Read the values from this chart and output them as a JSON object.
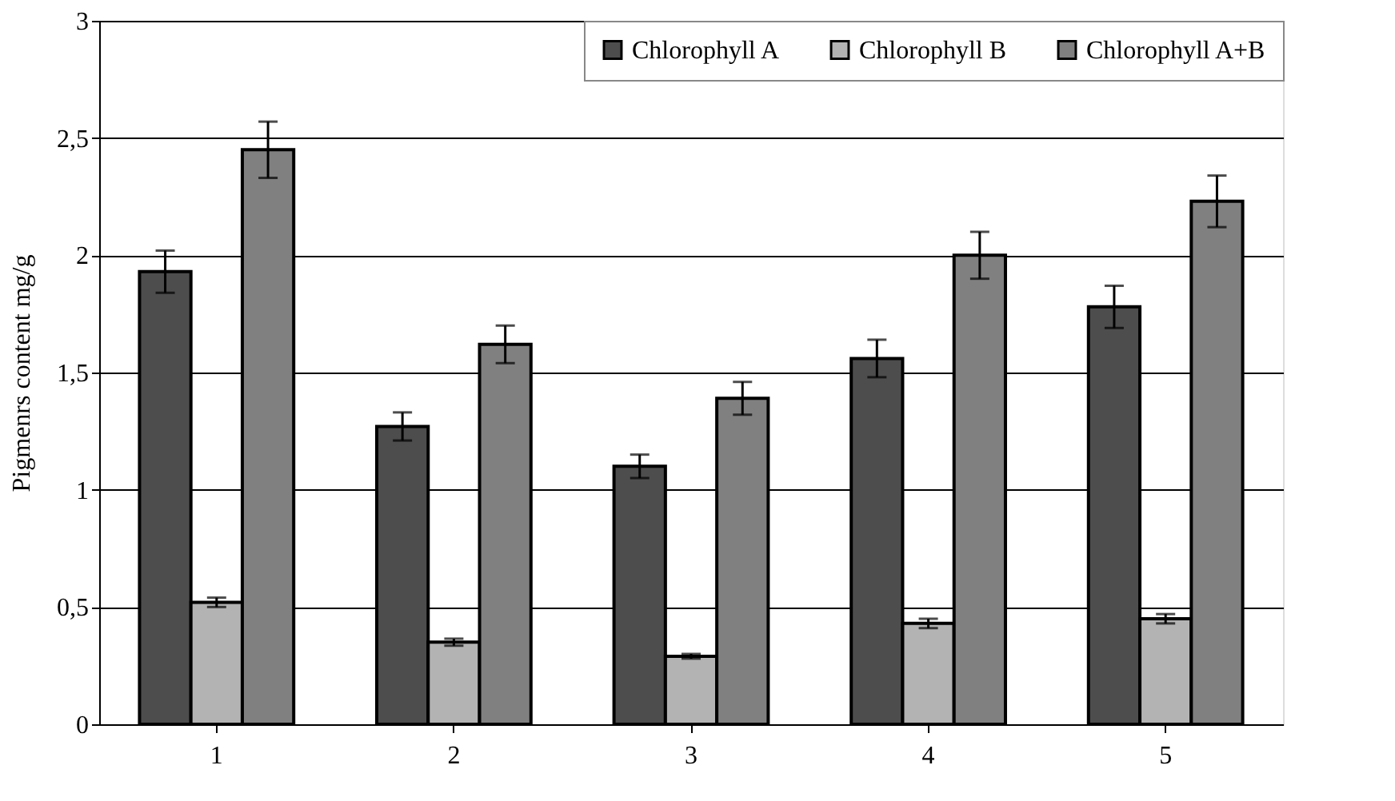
{
  "chart_data": {
    "type": "bar",
    "ylabel": "Pigmenrs content mg/g",
    "categories": [
      "1",
      "2",
      "3",
      "4",
      "5"
    ],
    "series": [
      {
        "name": "Chlorophyll A",
        "color": "#4d4d4d",
        "values": [
          1.93,
          1.27,
          1.1,
          1.56,
          1.78
        ],
        "errors": [
          0.09,
          0.06,
          0.05,
          0.08,
          0.09
        ]
      },
      {
        "name": "Chlorophyll B",
        "color": "#b3b3b3",
        "values": [
          0.52,
          0.35,
          0.29,
          0.43,
          0.45
        ],
        "errors": [
          0.02,
          0.015,
          0.01,
          0.02,
          0.02
        ]
      },
      {
        "name": "Chlorophyll A+B",
        "color": "#808080",
        "values": [
          2.45,
          1.62,
          1.39,
          2.0,
          2.23
        ],
        "errors": [
          0.12,
          0.08,
          0.07,
          0.1,
          0.11
        ]
      }
    ],
    "ylim": [
      0,
      3
    ],
    "yticks": [
      0,
      {
        "value": 0.5,
        "label": "0,5"
      },
      1,
      {
        "value": 1.5,
        "label": "1,5"
      },
      2,
      {
        "value": 2.5,
        "label": "2,5"
      },
      3
    ],
    "grid": "y",
    "legend": "top right"
  }
}
